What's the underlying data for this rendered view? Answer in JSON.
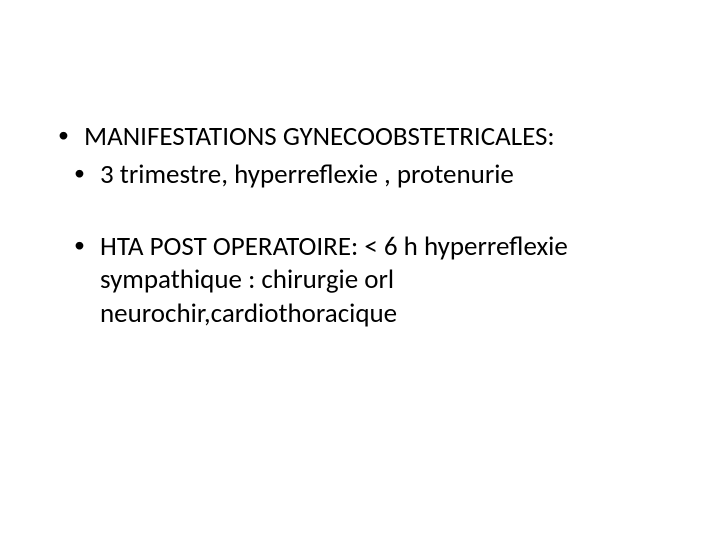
{
  "slide": {
    "bullets": [
      {
        "text": "MANIFESTATIONS GYNECOOBSTETRICALES:",
        "indent": false
      },
      {
        "text": " 3  trimestre,  hyperreflexie , protenurie",
        "indent": true
      },
      {
        "text": " HTA POST  OPERATOIRE: < 6 h   hyperreflexie sympathique : chirurgie orl neurochir,cardiothoracique",
        "indent": true
      }
    ],
    "background_color": "#ffffff",
    "text_color": "#000000",
    "font_family": "Calibri, Arial, sans-serif",
    "bullet_fontsize": 27
  }
}
